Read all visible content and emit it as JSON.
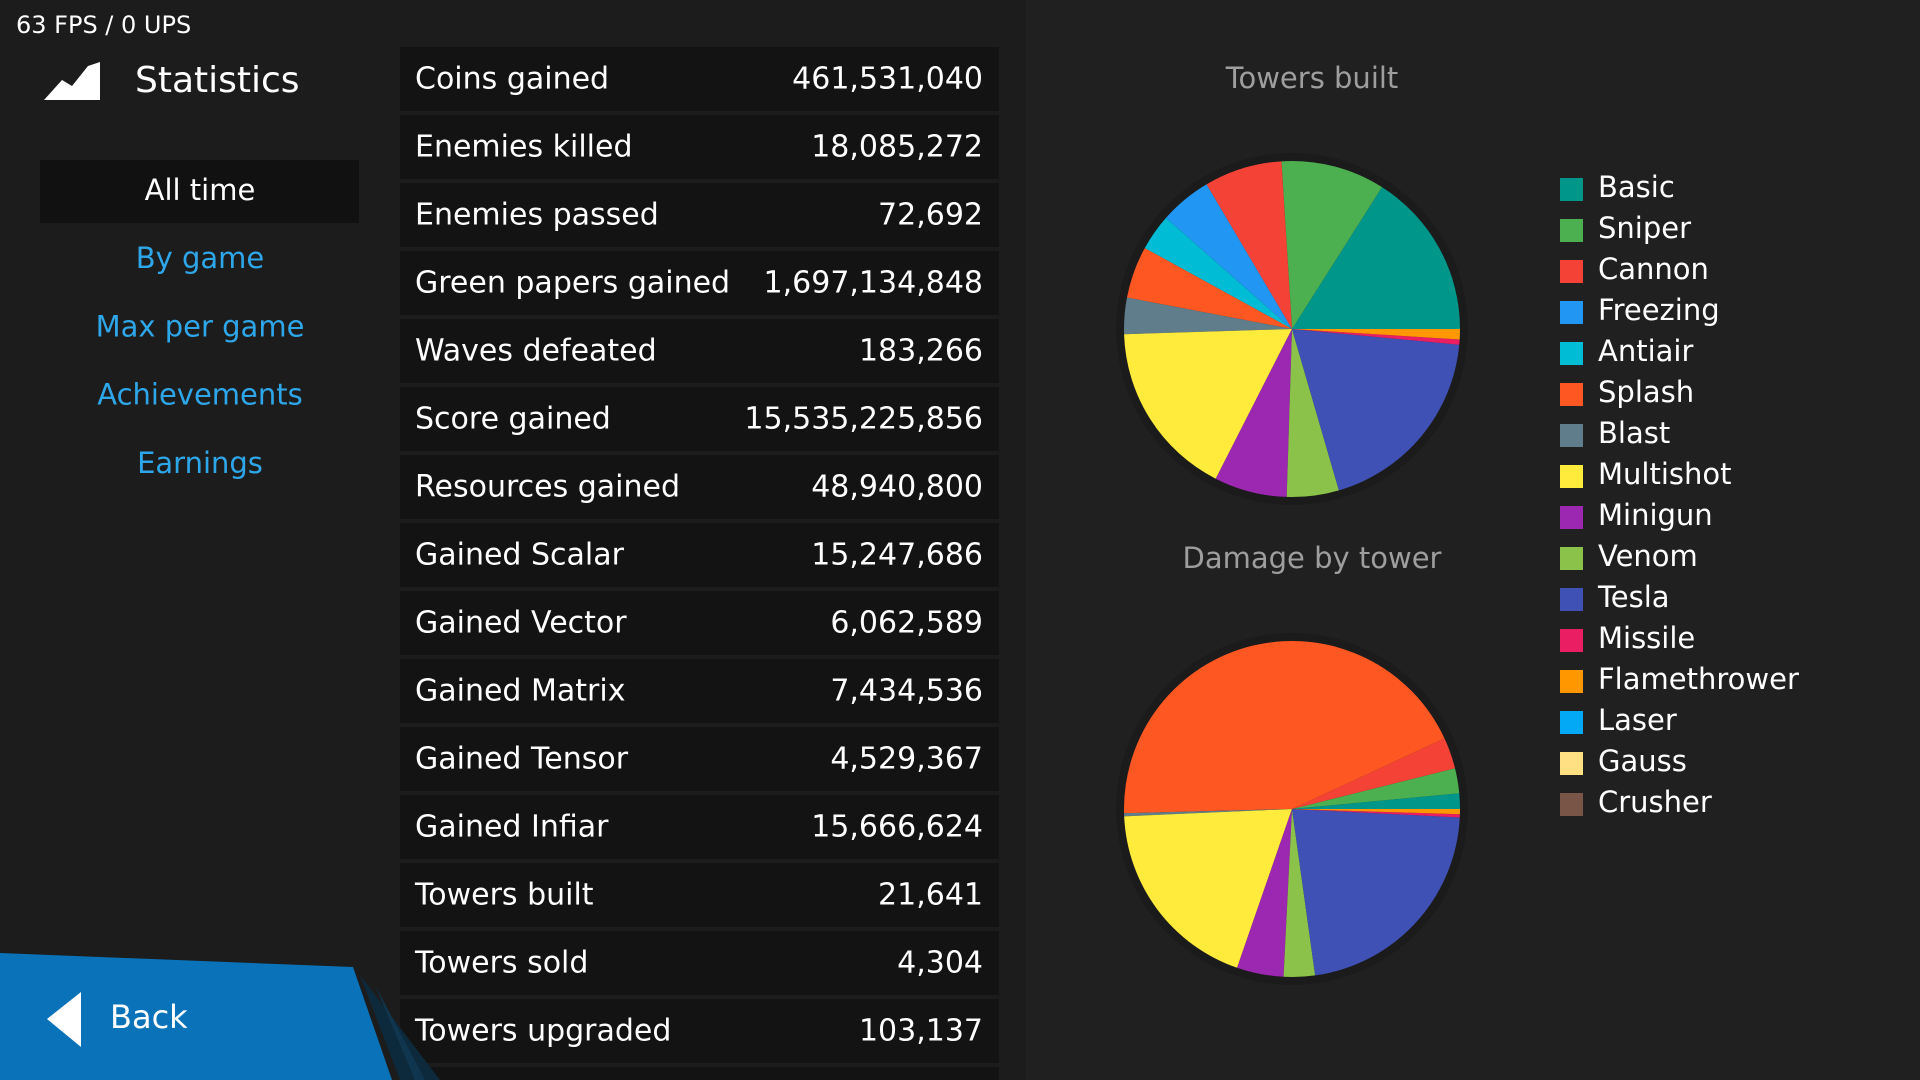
{
  "status": {
    "fps": "63 FPS / 0 UPS"
  },
  "header": {
    "title": "Statistics"
  },
  "menu": {
    "items": [
      "All time",
      "By game",
      "Max per game",
      "Achievements",
      "Earnings"
    ],
    "selected": 0
  },
  "stats": {
    "rows": [
      [
        "Coins gained",
        "461,531,040"
      ],
      [
        "Enemies killed",
        "18,085,272"
      ],
      [
        "Enemies passed",
        "72,692"
      ],
      [
        "Green papers gained",
        "1,697,134,848"
      ],
      [
        "Waves defeated",
        "183,266"
      ],
      [
        "Score gained",
        "15,535,225,856"
      ],
      [
        "Resources gained",
        "48,940,800"
      ],
      [
        "Gained Scalar",
        "15,247,686"
      ],
      [
        "Gained Vector",
        "6,062,589"
      ],
      [
        "Gained Matrix",
        "7,434,536"
      ],
      [
        "Gained Tensor",
        "4,529,367"
      ],
      [
        "Gained Infiar",
        "15,666,624"
      ],
      [
        "Towers built",
        "21,641"
      ],
      [
        "Towers sold",
        "4,304"
      ],
      [
        "Towers upgraded",
        "103,137"
      ]
    ]
  },
  "back": {
    "label": "Back"
  },
  "legend": {
    "items": [
      {
        "name": "Basic",
        "color": "#00968a"
      },
      {
        "name": "Sniper",
        "color": "#4caf50"
      },
      {
        "name": "Cannon",
        "color": "#f44336"
      },
      {
        "name": "Freezing",
        "color": "#2196f3"
      },
      {
        "name": "Antiair",
        "color": "#00bcd4"
      },
      {
        "name": "Splash",
        "color": "#ff5722"
      },
      {
        "name": "Blast",
        "color": "#607d8b"
      },
      {
        "name": "Multishot",
        "color": "#ffeb3b"
      },
      {
        "name": "Minigun",
        "color": "#9c27b0"
      },
      {
        "name": "Venom",
        "color": "#8bc34a"
      },
      {
        "name": "Tesla",
        "color": "#3f51b5"
      },
      {
        "name": "Missile",
        "color": "#e91e63"
      },
      {
        "name": "Flamethrower",
        "color": "#ff9800"
      },
      {
        "name": "Laser",
        "color": "#03a9f4"
      },
      {
        "name": "Gauss",
        "color": "#ffe082"
      },
      {
        "name": "Crusher",
        "color": "#795548"
      }
    ]
  },
  "chart_data": [
    {
      "type": "pie",
      "title": "Towers built",
      "values": [
        16,
        10,
        7.5,
        5,
        3.5,
        5,
        3.5,
        17,
        7,
        5,
        19,
        0.5,
        1,
        0,
        0,
        0
      ]
    },
    {
      "type": "pie",
      "title": "Damage by tower",
      "values": [
        1.5,
        2.4,
        3,
        0,
        0,
        43.5,
        0.3,
        19,
        4.5,
        3,
        22,
        0.3,
        0.5,
        0,
        0,
        0
      ]
    }
  ]
}
